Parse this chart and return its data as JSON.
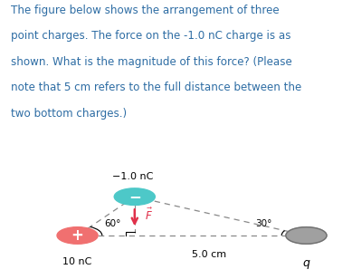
{
  "text_lines": [
    "The figure below shows the arrangement of three",
    "point charges. The force on the -1.0 nC charge is as",
    "shown. What is the magnitude of this force? (Please",
    "note that 5 cm refers to the full distance between the",
    "two bottom charges.)"
  ],
  "text_color": "#2e6da4",
  "background_color": "#ffffff",
  "charge_neg_label": "−1.0 nC",
  "charge_neg_color": "#4dc8c8",
  "charge_neg_symbol": "−",
  "charge_pos_label": "10 nC",
  "charge_pos_color": "#f07070",
  "charge_pos_symbol": "+",
  "charge_q_label": "q",
  "charge_q_color": "#a0a0a0",
  "force_color": "#e0304a",
  "angle_left_label": "60°",
  "angle_right_label": "30°",
  "distance_label": "5.0 cm",
  "figsize": [
    3.89,
    3.08
  ],
  "dpi": 100
}
